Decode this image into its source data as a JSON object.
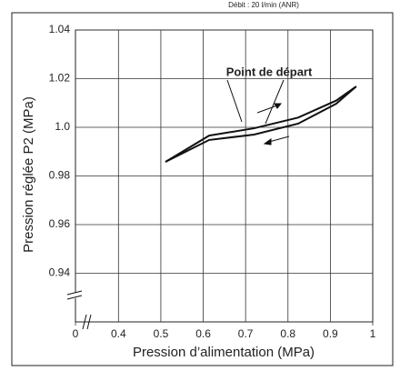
{
  "chart_data": {
    "type": "line",
    "subtitle": "Débit : 20 l/min (ANR)",
    "xlabel": "Pression d’alimentation (MPa)",
    "ylabel": "Pression réglée P2 (MPa)",
    "annotation": "Point de départ",
    "xlim": [
      0,
      1
    ],
    "xbreak": [
      0,
      0.35
    ],
    "xticks": [
      0,
      0.4,
      0.5,
      0.6,
      0.7,
      0.8,
      0.9,
      1
    ],
    "ylim": [
      0.92,
      1.04
    ],
    "yticks": [
      0.94,
      0.96,
      0.98,
      {
        "value": 1.0,
        "label": "1.0"
      },
      1.02,
      1.04
    ],
    "grid": true,
    "series": [
      {
        "color": "#111",
        "x": [
          0.511,
          0.614,
          0.72,
          0.824,
          0.914,
          0.961
        ],
        "values": [
          0.9858,
          0.9966,
          0.9996,
          1.004,
          1.011,
          1.0168
        ]
      },
      {
        "color": "#111",
        "x": [
          0.961,
          0.914,
          0.824,
          0.72,
          0.614,
          0.511
        ],
        "values": [
          1.0168,
          1.0097,
          1.0015,
          0.997,
          0.9948,
          0.9858
        ]
      }
    ]
  }
}
